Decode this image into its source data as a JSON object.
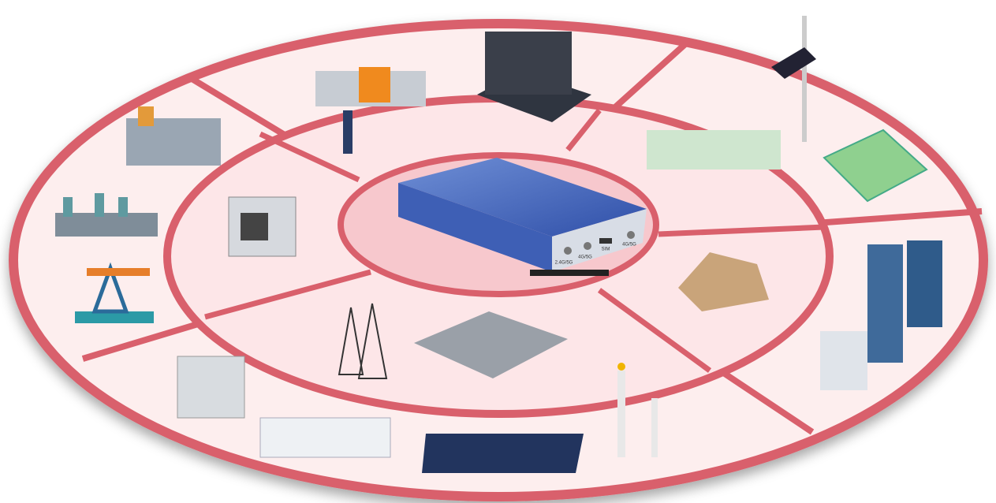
{
  "device": {
    "ports": [
      "2.4G/5G",
      "4G/5G",
      "SIM",
      "4G/5G"
    ]
  }
}
